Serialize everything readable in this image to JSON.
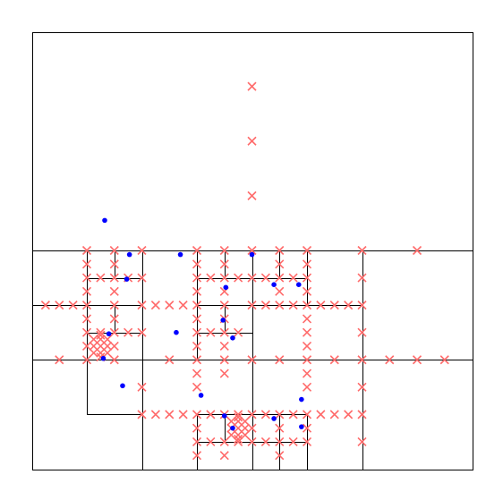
{
  "colors": {
    "background": "#ffffff",
    "grid_lines": "#000000",
    "query_markers": "#ff6b6b",
    "sample_points": "#0000ff"
  },
  "chart_data": {
    "type": "scatter",
    "description_kind": "quadtree-subdivision",
    "xlim": [
      0,
      16
    ],
    "ylim": [
      0,
      16
    ],
    "grid": false,
    "cells": [
      [
        0,
        0,
        16,
        16
      ],
      [
        0,
        0,
        8,
        8
      ],
      [
        8,
        0,
        16,
        8
      ],
      [
        0,
        4,
        4,
        8
      ],
      [
        4,
        4,
        8,
        8
      ],
      [
        8,
        4,
        12,
        8
      ],
      [
        12,
        4,
        16,
        8
      ],
      [
        0,
        0,
        4,
        4
      ],
      [
        4,
        0,
        8,
        4
      ],
      [
        8,
        0,
        12,
        4
      ],
      [
        12,
        0,
        16,
        4
      ],
      [
        0,
        6,
        2,
        8
      ],
      [
        2,
        6,
        4,
        8
      ],
      [
        0,
        4,
        2,
        6
      ],
      [
        2,
        4,
        4,
        6
      ],
      [
        6,
        6,
        8,
        8
      ],
      [
        8,
        6,
        10,
        8
      ],
      [
        10,
        6,
        12,
        8
      ],
      [
        6,
        4,
        8,
        6
      ],
      [
        2,
        2,
        4,
        4
      ],
      [
        6,
        0,
        8,
        2
      ],
      [
        2,
        7,
        3,
        8
      ],
      [
        3,
        7,
        4,
        8
      ],
      [
        2,
        5,
        3,
        6
      ],
      [
        3,
        5,
        4,
        6
      ],
      [
        6,
        7,
        7,
        8
      ],
      [
        7,
        7,
        8,
        8
      ],
      [
        6,
        5,
        7,
        6
      ],
      [
        7,
        5,
        8,
        6
      ],
      [
        8,
        7,
        9,
        8
      ],
      [
        9,
        7,
        10,
        8
      ],
      [
        6,
        1,
        7,
        2
      ],
      [
        7,
        1,
        8,
        2
      ],
      [
        8,
        0,
        9,
        1
      ],
      [
        9,
        0,
        10,
        1
      ],
      [
        8,
        1,
        9,
        2
      ],
      [
        9,
        1,
        10,
        2
      ]
    ],
    "series": [
      {
        "marker": "x",
        "points": [
          [
            8,
            14
          ],
          [
            8,
            12
          ],
          [
            8,
            10
          ],
          [
            2,
            8
          ],
          [
            3,
            8
          ],
          [
            4,
            8
          ],
          [
            6,
            8
          ],
          [
            7,
            8
          ],
          [
            8,
            8
          ],
          [
            9,
            8
          ],
          [
            10,
            8
          ],
          [
            12,
            8
          ],
          [
            14,
            8
          ],
          [
            2,
            7.5
          ],
          [
            3,
            7.5
          ],
          [
            6,
            7.5
          ],
          [
            7,
            7.5
          ],
          [
            9,
            7.5
          ],
          [
            10,
            7.5
          ],
          [
            2,
            7
          ],
          [
            2.5,
            7
          ],
          [
            3,
            7
          ],
          [
            3.5,
            7
          ],
          [
            4,
            7
          ],
          [
            6,
            7
          ],
          [
            6.5,
            7
          ],
          [
            7,
            7
          ],
          [
            7.5,
            7
          ],
          [
            8,
            7
          ],
          [
            8.5,
            7
          ],
          [
            9,
            7
          ],
          [
            9.5,
            7
          ],
          [
            10,
            7
          ],
          [
            12,
            7
          ],
          [
            2,
            6.5
          ],
          [
            3,
            6.5
          ],
          [
            6,
            6.5
          ],
          [
            7,
            6.5
          ],
          [
            9,
            6.5
          ],
          [
            10,
            6.5
          ],
          [
            0.5,
            6
          ],
          [
            1,
            6
          ],
          [
            1.5,
            6
          ],
          [
            2,
            6
          ],
          [
            3,
            6
          ],
          [
            4,
            6
          ],
          [
            4.5,
            6
          ],
          [
            5,
            6
          ],
          [
            5.5,
            6
          ],
          [
            6,
            6
          ],
          [
            7,
            6
          ],
          [
            8,
            6
          ],
          [
            8.5,
            6
          ],
          [
            9,
            6
          ],
          [
            9.5,
            6
          ],
          [
            10,
            6
          ],
          [
            10.5,
            6
          ],
          [
            11,
            6
          ],
          [
            11.5,
            6
          ],
          [
            12,
            6
          ],
          [
            2,
            5.5
          ],
          [
            3,
            5.5
          ],
          [
            6,
            5.5
          ],
          [
            7,
            5.5
          ],
          [
            10,
            5.5
          ],
          [
            2,
            5
          ],
          [
            2.5,
            5
          ],
          [
            3,
            5
          ],
          [
            3.5,
            5
          ],
          [
            4,
            5
          ],
          [
            6,
            5
          ],
          [
            6.5,
            5
          ],
          [
            7,
            5
          ],
          [
            7.5,
            5
          ],
          [
            10,
            5
          ],
          [
            12,
            5
          ],
          [
            2,
            4.5
          ],
          [
            3,
            4.5
          ],
          [
            6,
            4.5
          ],
          [
            7,
            4.5
          ],
          [
            10,
            4.5
          ],
          [
            2.25,
            4.75
          ],
          [
            2.5,
            4.75
          ],
          [
            2.75,
            4.75
          ],
          [
            2.25,
            4.5
          ],
          [
            2.5,
            4.5
          ],
          [
            2.75,
            4.5
          ],
          [
            2.25,
            4.25
          ],
          [
            2.5,
            4.25
          ],
          [
            2.75,
            4.25
          ],
          [
            2.5,
            4.9
          ],
          [
            2.5,
            4.1
          ],
          [
            1,
            4
          ],
          [
            2,
            4
          ],
          [
            3,
            4
          ],
          [
            5,
            4
          ],
          [
            6,
            4
          ],
          [
            7,
            4
          ],
          [
            8,
            4
          ],
          [
            9,
            4
          ],
          [
            10,
            4
          ],
          [
            11,
            4
          ],
          [
            12,
            4
          ],
          [
            13,
            4
          ],
          [
            14,
            4
          ],
          [
            15,
            4
          ],
          [
            6,
            3.5
          ],
          [
            7,
            3.5
          ],
          [
            10,
            3.5
          ],
          [
            4,
            3
          ],
          [
            6,
            3
          ],
          [
            10,
            3
          ],
          [
            12,
            3
          ],
          [
            4,
            2
          ],
          [
            4.5,
            2
          ],
          [
            5,
            2
          ],
          [
            5.5,
            2
          ],
          [
            6,
            2
          ],
          [
            6.5,
            2
          ],
          [
            7,
            2
          ],
          [
            7.5,
            2
          ],
          [
            8,
            2
          ],
          [
            8.5,
            2
          ],
          [
            9,
            2
          ],
          [
            9.5,
            2
          ],
          [
            10,
            2
          ],
          [
            10.5,
            2
          ],
          [
            11,
            2
          ],
          [
            11.5,
            2
          ],
          [
            12,
            2
          ],
          [
            6,
            1.5
          ],
          [
            8,
            1.5
          ],
          [
            9,
            1.5
          ],
          [
            10,
            1.5
          ],
          [
            6,
            1
          ],
          [
            6.5,
            1
          ],
          [
            7,
            1
          ],
          [
            7.5,
            1
          ],
          [
            8,
            1
          ],
          [
            8.5,
            1
          ],
          [
            9,
            1
          ],
          [
            9.5,
            1
          ],
          [
            10,
            1
          ],
          [
            12,
            1
          ],
          [
            6,
            0.5
          ],
          [
            7,
            0.5
          ],
          [
            9,
            0.5
          ],
          [
            7.25,
            1.75
          ],
          [
            7.5,
            1.75
          ],
          [
            7.75,
            1.75
          ],
          [
            7.25,
            1.5
          ],
          [
            7.5,
            1.5
          ],
          [
            7.75,
            1.5
          ],
          [
            7.25,
            1.25
          ],
          [
            7.5,
            1.25
          ],
          [
            7.75,
            1.25
          ],
          [
            7.5,
            1.9
          ],
          [
            7.5,
            1.1
          ]
        ]
      },
      {
        "marker": "dot",
        "points": [
          [
            2.65,
            9.1
          ],
          [
            3.55,
            7.85
          ],
          [
            3.45,
            6.95
          ],
          [
            5.4,
            7.85
          ],
          [
            8,
            7.85
          ],
          [
            7.05,
            6.65
          ],
          [
            8.8,
            6.75
          ],
          [
            9.7,
            6.75
          ],
          [
            6.95,
            5.45
          ],
          [
            5.25,
            5.0
          ],
          [
            7.3,
            4.8
          ],
          [
            2.8,
            4.95
          ],
          [
            2.6,
            4.05
          ],
          [
            3.3,
            3.05
          ],
          [
            6.15,
            2.7
          ],
          [
            7.0,
            1.95
          ],
          [
            8.8,
            1.85
          ],
          [
            9.8,
            2.55
          ],
          [
            9.8,
            1.55
          ],
          [
            7.3,
            1.5
          ]
        ]
      }
    ]
  }
}
